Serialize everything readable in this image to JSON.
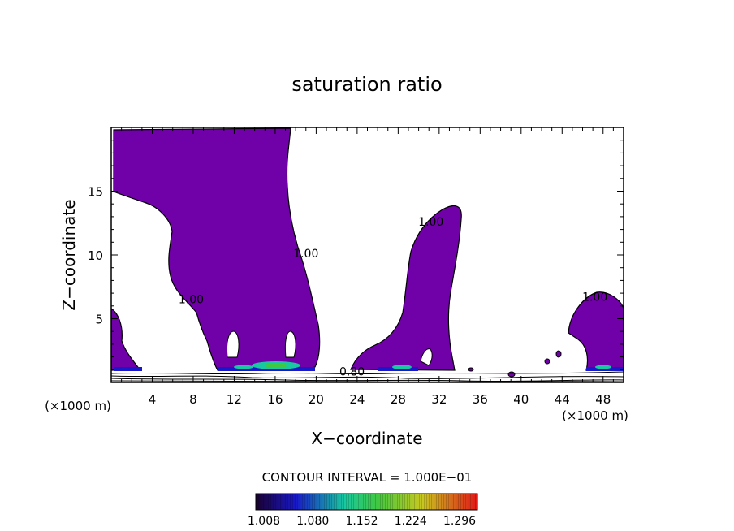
{
  "chart_data": {
    "type": "heatmap",
    "title": "saturation ratio",
    "xlabel": "X−coordinate",
    "ylabel": "Z−coordinate",
    "x_unit_left": "(×1000 m)",
    "x_unit_right": "(×1000 m)",
    "xlim": [
      0,
      50
    ],
    "ylim": [
      0,
      20
    ],
    "x_ticks": [
      4,
      8,
      12,
      16,
      20,
      24,
      28,
      32,
      36,
      40,
      44,
      48
    ],
    "y_ticks": [
      5,
      10,
      15
    ],
    "contour_interval_text": "CONTOUR INTERVAL = 1.000E−01",
    "contour_labels": [
      {
        "text": "1.00",
        "x": 7.8,
        "z": 6.2
      },
      {
        "text": "1.00",
        "x": 19.0,
        "z": 9.8
      },
      {
        "text": "1.00",
        "x": 31.2,
        "z": 12.3
      },
      {
        "text": "1.00",
        "x": 47.2,
        "z": 6.4
      },
      {
        "text": "0.80",
        "x": 23.5,
        "z": 0.55
      }
    ],
    "colorbar": {
      "tick_labels": [
        "1.008",
        "1.080",
        "1.152",
        "1.224",
        "1.296"
      ],
      "colors": [
        "#1a0030",
        "#1818c8",
        "#18c8a0",
        "#40c840",
        "#c8c820",
        "#e01818"
      ]
    },
    "fill_color": "#7000a8",
    "supersaturated_regions": [
      {
        "name": "plume-left-edge",
        "x_range": [
          0,
          3.5
        ],
        "z_top": 5.8
      },
      {
        "name": "plume-upper-main",
        "x_range": [
          0,
          17.6
        ],
        "z_range": [
          12.5,
          19.8
        ]
      },
      {
        "name": "plume-main-column",
        "x_range": [
          5.2,
          20.1
        ],
        "z_range": [
          1.2,
          14.5
        ]
      },
      {
        "name": "plume-central",
        "x_range": [
          23.5,
          34.5
        ],
        "z_top": 13.8
      },
      {
        "name": "plume-right",
        "x_range": [
          44.5,
          50
        ],
        "z_top": 7.3
      }
    ]
  }
}
